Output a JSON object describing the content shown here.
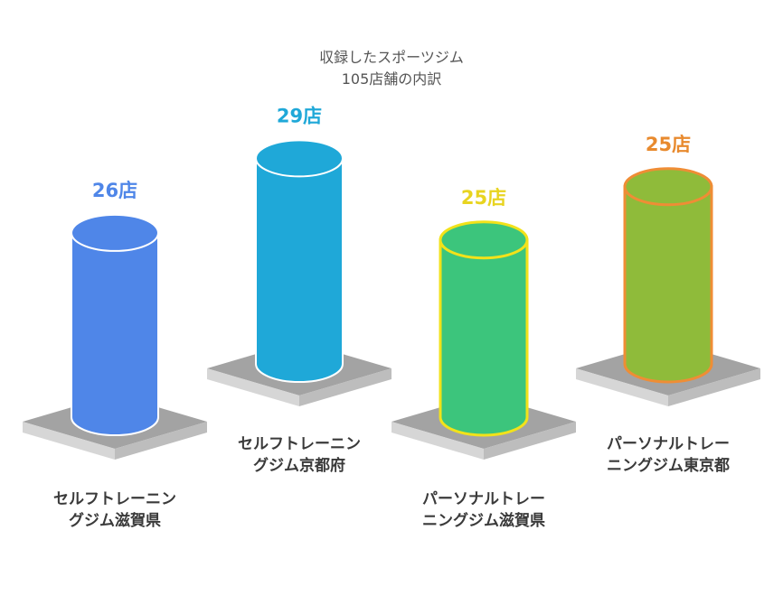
{
  "chart_data": {
    "type": "bar",
    "title_lines": [
      "収録したスポーツジム",
      "105店舗の内訳"
    ],
    "categories": [
      [
        "セルフトレーニン",
        "グジム滋賀県"
      ],
      [
        "セルフトレーニン",
        "グジム京都府"
      ],
      [
        "パーソナルトレー",
        "ニングジム滋賀県"
      ],
      [
        "パーソナルトレー",
        "ニングジム東京都"
      ]
    ],
    "values": [
      26,
      29,
      25,
      25
    ],
    "value_labels": [
      "26店",
      "29店",
      "25店",
      "25店"
    ],
    "colors": [
      "#4f86e8",
      "#1fa8d8",
      "#3cc57c",
      "#8fbb3a"
    ],
    "label_colors": [
      "#4f86e8",
      "#1fa8d8",
      "#e8d420",
      "#e88a2e"
    ],
    "outline_colors": [
      "#ffffff",
      "#ffffff",
      "#f2e21a",
      "#ef8d35"
    ],
    "grid": false,
    "legend": "none"
  }
}
